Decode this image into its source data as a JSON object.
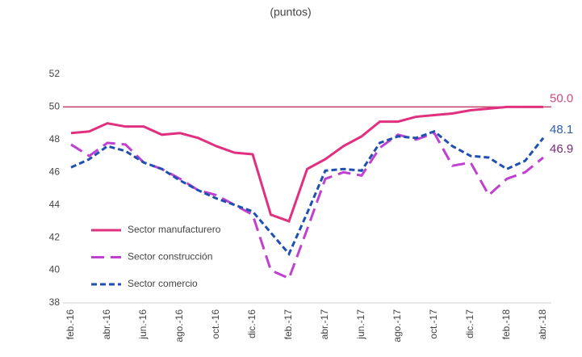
{
  "chart_data": {
    "type": "line",
    "subtitle": "(puntos)",
    "categories": [
      "feb.-16",
      null,
      "abr.-16",
      null,
      "jun.-16",
      null,
      "ago.-16",
      null,
      "oct.-16",
      null,
      "dic.-16",
      null,
      "feb.-17",
      null,
      "abr.-17",
      null,
      "jun.-17",
      null,
      "ago.-17",
      null,
      "oct.-17",
      null,
      "dic.-17",
      null,
      "feb.-18",
      null,
      "abr.-18"
    ],
    "series": [
      {
        "name": "Sector manufacturero",
        "color": "#e0307f",
        "dash": "solid",
        "values": [
          48.4,
          48.5,
          49.0,
          48.8,
          48.8,
          48.3,
          48.4,
          48.1,
          47.6,
          47.2,
          47.1,
          43.4,
          43.0,
          46.2,
          46.8,
          47.6,
          48.2,
          49.1,
          49.1,
          49.4,
          49.5,
          49.6,
          49.8,
          49.9,
          50.0,
          50.0,
          50.0
        ],
        "value_labels": [
          null,
          null,
          null,
          null,
          null,
          null,
          null,
          null,
          null,
          null,
          null,
          null,
          null,
          null,
          null,
          null,
          null,
          null,
          null,
          null,
          null,
          null,
          null,
          null,
          null,
          null,
          "50.0"
        ],
        "label_color": "#d04a80"
      },
      {
        "name": "Sector construcción",
        "color": "#c040d0",
        "dash": "long",
        "values": [
          47.7,
          47.0,
          47.8,
          47.7,
          46.6,
          46.2,
          45.6,
          44.9,
          44.6,
          44.0,
          43.4,
          40.0,
          39.5,
          42.5,
          45.6,
          46.0,
          45.8,
          47.5,
          48.3,
          48.0,
          48.4,
          46.4,
          46.6,
          44.6,
          45.6,
          46.0,
          46.9
        ],
        "value_labels": [
          null,
          null,
          null,
          null,
          null,
          null,
          null,
          null,
          null,
          null,
          null,
          null,
          null,
          null,
          null,
          null,
          null,
          null,
          null,
          null,
          null,
          null,
          null,
          null,
          null,
          null,
          "46.9"
        ],
        "label_color": "#7a2a7a"
      },
      {
        "name": "Sector comercio",
        "color": "#1f4fb0",
        "dash": "short",
        "values": [
          46.3,
          46.8,
          47.6,
          47.3,
          46.6,
          46.2,
          45.5,
          44.9,
          44.4,
          44.0,
          43.6,
          42.3,
          41.0,
          43.5,
          46.1,
          46.2,
          46.1,
          47.8,
          48.2,
          48.1,
          48.5,
          47.6,
          47.0,
          46.9,
          46.2,
          46.7,
          48.1
        ],
        "value_labels": [
          null,
          null,
          null,
          null,
          null,
          null,
          null,
          null,
          null,
          null,
          null,
          null,
          null,
          null,
          null,
          null,
          null,
          null,
          null,
          null,
          null,
          null,
          null,
          null,
          null,
          null,
          "48.1"
        ],
        "label_color": "#2f5faf"
      }
    ],
    "reference_line": 50,
    "reference_color": "#c0406a",
    "ylim": [
      38,
      52
    ],
    "yticks": [
      38,
      40,
      42,
      44,
      46,
      48,
      50,
      52
    ],
    "grid": false
  }
}
